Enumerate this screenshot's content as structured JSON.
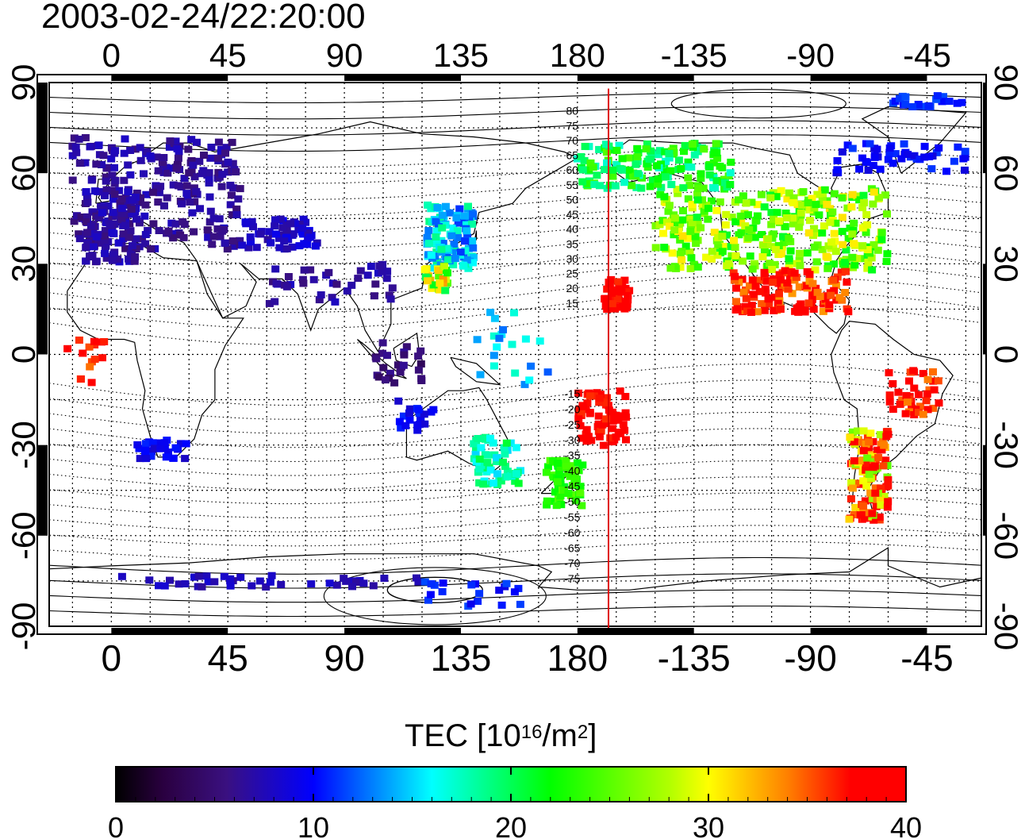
{
  "title": "2003-02-24/22:20:00",
  "map": {
    "lon_ticks": [
      "0",
      "45",
      "90",
      "135",
      "180",
      "-135",
      "-90",
      "-45"
    ],
    "lon_values": [
      0,
      45,
      90,
      135,
      180,
      225,
      270,
      315
    ],
    "lat_ticks": [
      "90",
      "60",
      "30",
      "0",
      "-30",
      "-60",
      "-90"
    ],
    "lat_values": [
      90,
      60,
      30,
      0,
      -30,
      -60,
      -90
    ],
    "lon_range": [
      -24,
      336
    ],
    "lat_range": [
      -90,
      90
    ],
    "terminator_lon": 192,
    "terminator_color": "#e00000",
    "contour_labels_north": [
      "80",
      "75",
      "70",
      "65",
      "60",
      "55",
      "50",
      "45",
      "40",
      "35",
      "30",
      "25",
      "20",
      "15"
    ],
    "contour_labels_south": [
      "-15",
      "-20",
      "-25",
      "-30",
      "-35",
      "-40",
      "-45",
      "-50",
      "-55",
      "-60",
      "-65",
      "-70",
      "-75"
    ]
  },
  "colorbar": {
    "title_main": "TEC  [10",
    "title_exp1": "16",
    "title_mid": "/m",
    "title_exp2": "2",
    "title_end": "]",
    "min": 0,
    "max": 40,
    "tick_labels": [
      "0",
      "10",
      "20",
      "30",
      "40"
    ],
    "tick_values": [
      0,
      10,
      20,
      30,
      40
    ]
  }
}
